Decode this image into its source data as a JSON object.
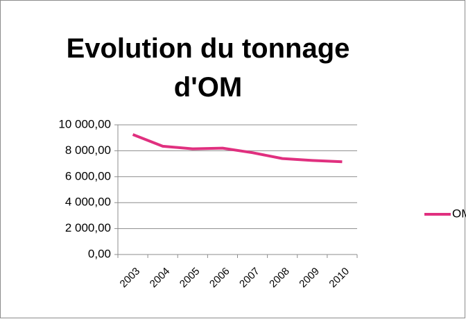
{
  "chart_data": {
    "type": "line",
    "title": "Evolution du tonnage d'OM",
    "categories": [
      "2003",
      "2004",
      "2005",
      "2006",
      "2007",
      "2008",
      "2009",
      "2010"
    ],
    "series": [
      {
        "name": "OM",
        "color": "#e0307f",
        "values": [
          9250,
          8350,
          8150,
          8200,
          7850,
          7400,
          7250,
          7150
        ]
      }
    ],
    "ylim": [
      0,
      10000
    ],
    "yticks": [
      {
        "value": 0,
        "label": "0,00"
      },
      {
        "value": 2000,
        "label": "2 000,00"
      },
      {
        "value": 4000,
        "label": "4 000,00"
      },
      {
        "value": 6000,
        "label": "6 000,00"
      },
      {
        "value": 8000,
        "label": "8 000,00"
      },
      {
        "value": 10000,
        "label": "10 000,00"
      }
    ],
    "grid": true,
    "legend": "right"
  }
}
